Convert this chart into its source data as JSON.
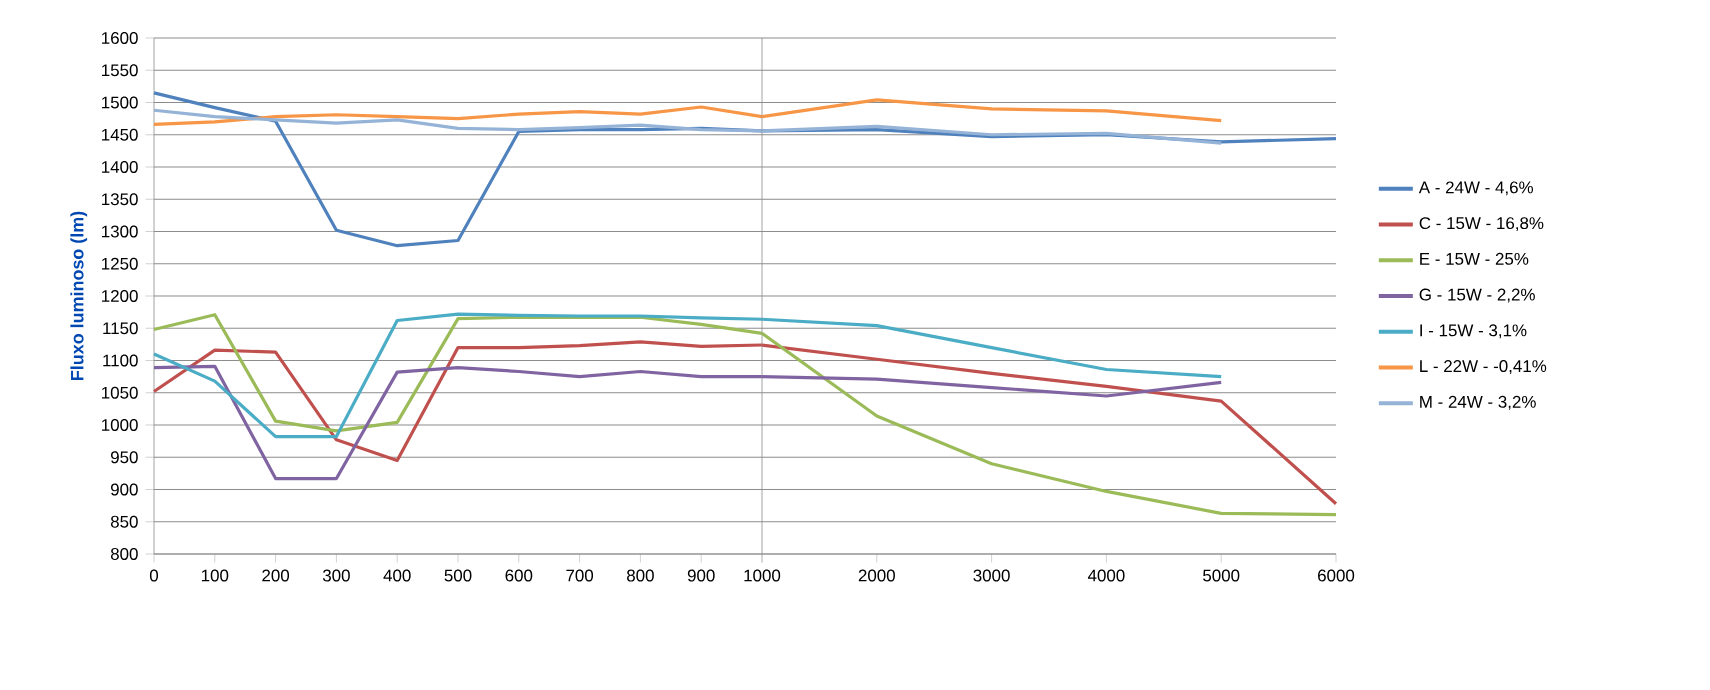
{
  "chart_data": [
    {
      "type": "line",
      "ylabel": "Fluxo luminoso  (lm)",
      "x": [
        0,
        100,
        200,
        300,
        400,
        500,
        600,
        700,
        800,
        900,
        1000
      ],
      "xlim": [
        0,
        1000
      ],
      "xticks": [
        0,
        100,
        200,
        300,
        400,
        500,
        600,
        700,
        800,
        900,
        1000
      ],
      "ylim": [
        800,
        1600
      ],
      "yticks": [
        800,
        850,
        900,
        950,
        1000,
        1050,
        1100,
        1150,
        1200,
        1250,
        1300,
        1350,
        1400,
        1450,
        1500,
        1550,
        1600
      ],
      "grid": "y",
      "marker": "none",
      "line_style": "solid",
      "legend": false,
      "series": [
        {
          "color": "#4f81bd",
          "values": [
            1515,
            1492,
            1471,
            1302,
            1278,
            1286,
            1455,
            1458,
            1458,
            1460,
            1456
          ]
        },
        {
          "color": "#c0504d",
          "values": [
            1052,
            1116,
            1113,
            977,
            945,
            1120,
            1120,
            1123,
            1129,
            1122,
            1124
          ]
        },
        {
          "color": "#9bbb59",
          "values": [
            1148,
            1171,
            1006,
            991,
            1004,
            1165,
            1167,
            1167,
            1167,
            1156,
            1142
          ]
        },
        {
          "color": "#8064a2",
          "values": [
            1089,
            1091,
            917,
            917,
            1082,
            1089,
            1083,
            1075,
            1083,
            1075,
            1075
          ]
        },
        {
          "color": "#4bacc6",
          "values": [
            1110,
            1068,
            982,
            982,
            1162,
            1172,
            1170,
            1169,
            1169,
            1166,
            1164
          ]
        },
        {
          "color": "#f79646",
          "values": [
            1466,
            1470,
            1478,
            1481,
            1478,
            1475,
            1482,
            1486,
            1482,
            1493,
            1478
          ]
        },
        {
          "color": "#95b3d7",
          "values": [
            1488,
            1478,
            1473,
            1468,
            1473,
            1460,
            1458,
            1461,
            1465,
            1458,
            1456
          ]
        }
      ]
    },
    {
      "type": "line",
      "x": [
        1000,
        2000,
        3000,
        4000,
        5000,
        6000
      ],
      "xlim": [
        1000,
        6000
      ],
      "xticks": [
        {
          "value": 1000,
          "label": null
        },
        2000,
        3000,
        4000,
        5000,
        6000
      ],
      "ylim": [
        800,
        1600
      ],
      "yticks": [
        800,
        850,
        900,
        950,
        1000,
        1050,
        1100,
        1150,
        1200,
        1250,
        1300,
        1350,
        1400,
        1450,
        1500,
        1550,
        1600
      ],
      "tick_labels": "x",
      "grid": "y",
      "marker": "none",
      "line_style": "solid",
      "legend": "right",
      "series": [
        {
          "name": "A - 24W - 4,6%",
          "color": "#4f81bd",
          "values": [
            1456,
            1458,
            1447,
            1450,
            1439,
            1444
          ]
        },
        {
          "name": "C - 15W - 16,8%",
          "color": "#c0504d",
          "values": [
            1124,
            1102,
            1080,
            1060,
            1037,
            878
          ]
        },
        {
          "name": "E - 15W - 25%",
          "color": "#9bbb59",
          "values": [
            1142,
            1014,
            940,
            897,
            863,
            861
          ]
        },
        {
          "name": "G - 15W - 2,2%",
          "color": "#8064a2",
          "values": [
            1075,
            1071,
            1058,
            1045,
            1066,
            null
          ]
        },
        {
          "name": "I - 15W - 3,1%",
          "color": "#4bacc6",
          "values": [
            1164,
            1154,
            1120,
            1086,
            1075,
            null
          ]
        },
        {
          "name": "L - 22W - -0,41%",
          "color": "#f79646",
          "values": [
            1478,
            1504,
            1490,
            1487,
            1472,
            null
          ]
        },
        {
          "name": "M - 24W - 3,2%",
          "color": "#95b3d7",
          "values": [
            1456,
            1463,
            1450,
            1452,
            1437,
            null
          ]
        }
      ]
    }
  ]
}
